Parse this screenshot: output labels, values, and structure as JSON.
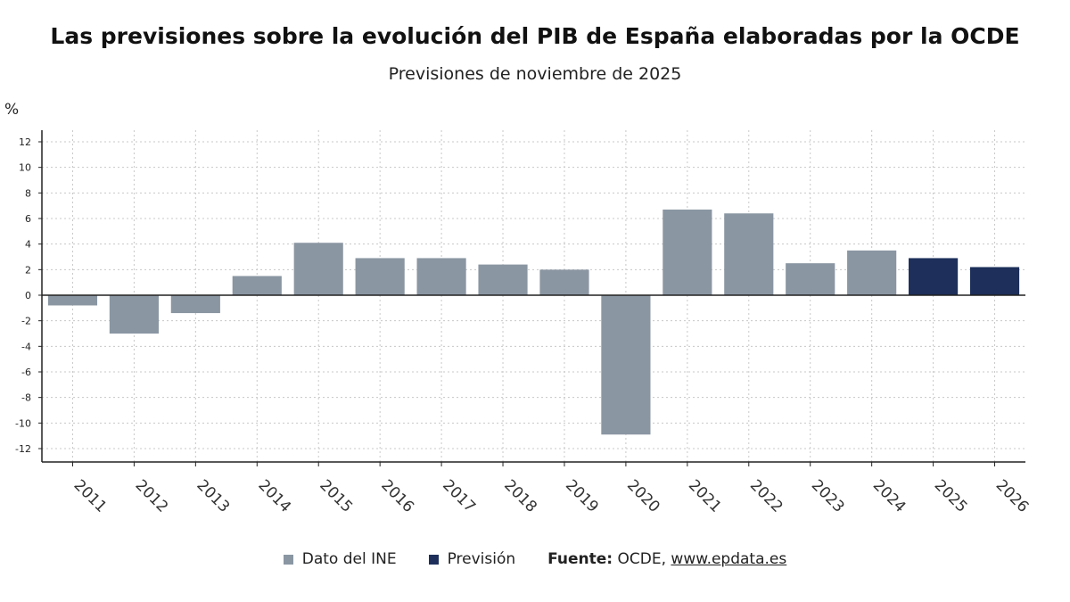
{
  "title": "Las previsiones sobre la evolución del PIB de España elaboradas por la OCDE",
  "subtitle": "Previsiones de noviembre de 2025",
  "unit": "%",
  "colors": {
    "ine": "#8a96a2",
    "prevision": "#1d2f5a",
    "axis": "#222222",
    "grid": "#c8c8c8"
  },
  "legend": {
    "ine_label": "Dato del INE",
    "prevision_label": "Previsión"
  },
  "source": {
    "label": "Fuente:",
    "text": "OCDE,",
    "link": "www.epdata.es"
  },
  "chart_data": {
    "type": "bar",
    "categories": [
      "2011",
      "2012",
      "2013",
      "2014",
      "2015",
      "2016",
      "2017",
      "2018",
      "2019",
      "2020",
      "2021",
      "2022",
      "2023",
      "2024",
      "2025",
      "2026"
    ],
    "series": [
      {
        "name": "Dato del INE",
        "values": [
          -0.8,
          -3.0,
          -1.4,
          1.5,
          4.1,
          2.9,
          2.9,
          2.4,
          2.0,
          -10.9,
          6.7,
          6.4,
          2.5,
          3.5,
          null,
          null
        ]
      },
      {
        "name": "Previsión",
        "values": [
          null,
          null,
          null,
          null,
          null,
          null,
          null,
          null,
          null,
          null,
          null,
          null,
          null,
          null,
          2.9,
          2.2
        ]
      }
    ],
    "ylim": [
      -13,
      13
    ],
    "yticks": [
      12,
      10,
      8,
      6,
      4,
      2,
      0,
      -2,
      -4,
      -6,
      -8,
      -10,
      -12
    ],
    "grid": true,
    "legend_position": "bottom"
  }
}
